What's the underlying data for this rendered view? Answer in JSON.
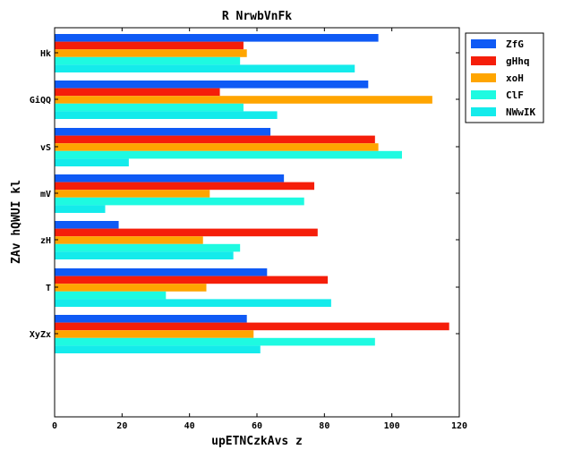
{
  "chart_data": {
    "type": "bar",
    "orientation": "horizontal",
    "title": "R NrwbVnFk",
    "xlabel": "upETNCzkAvs z",
    "ylabel": "ZAv hQWUI  kl",
    "xlim": [
      0,
      120
    ],
    "xticks": [
      0,
      20,
      40,
      60,
      80,
      100,
      120
    ],
    "categories": [
      "Hk",
      "GiQQ",
      "vS",
      "mV",
      "zH",
      "T",
      "XyZx"
    ],
    "series": [
      {
        "name": "ZfG",
        "color": "#0f5af5",
        "values": [
          96,
          93,
          64,
          68,
          19,
          63,
          57
        ]
      },
      {
        "name": "gHhq",
        "color": "#f51e0a",
        "values": [
          56,
          49,
          95,
          77,
          78,
          81,
          117
        ]
      },
      {
        "name": "xoH",
        "color": "#ffa500",
        "values": [
          57,
          112,
          96,
          46,
          44,
          45,
          59
        ]
      },
      {
        "name": "ClF",
        "color": "#1efae1",
        "values": [
          55,
          56,
          103,
          74,
          55,
          33,
          95
        ]
      },
      {
        "name": "NWwIK",
        "color": "#14ebeb",
        "values": [
          89,
          66,
          22,
          15,
          53,
          82,
          61
        ]
      }
    ],
    "grid": false,
    "legend_position": "outside-top-right"
  }
}
